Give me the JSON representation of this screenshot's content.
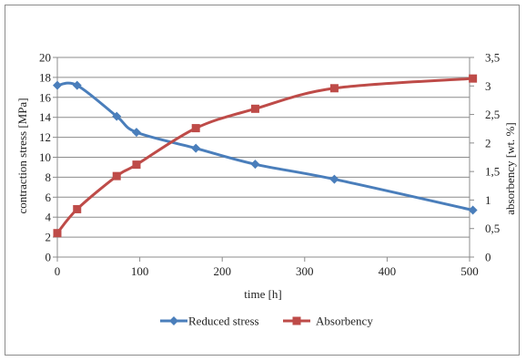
{
  "chart_data": {
    "type": "line",
    "title": "",
    "xlabel": "time  [h]",
    "ylabel_left": "contraction  stress  [MPa]",
    "ylabel_right": "absorbency  [wt. %]",
    "xlim": [
      0,
      500
    ],
    "ylim_left": [
      0,
      20
    ],
    "ylim_right": [
      0,
      3.5
    ],
    "x_ticks": [
      "0",
      "100",
      "200",
      "300",
      "400",
      "500"
    ],
    "y_left_ticks": [
      "0",
      "2",
      "4",
      "6",
      "8",
      "10",
      "12",
      "14",
      "16",
      "18",
      "20"
    ],
    "y_right_ticks": [
      "0",
      "0,5",
      "1",
      "1,5",
      "2",
      "2,5",
      "3",
      "3,5"
    ],
    "grid": true,
    "legend_position": "bottom",
    "series": [
      {
        "name": "Reduced stress",
        "axis": "left",
        "color": "#4a7ebb",
        "marker": "diamond",
        "x": [
          0,
          24,
          72,
          96,
          168,
          240,
          336,
          504
        ],
        "y": [
          17.2,
          17.2,
          14.1,
          12.5,
          10.9,
          9.3,
          7.8,
          4.7
        ]
      },
      {
        "name": "Absorbency",
        "axis": "right",
        "color": "#be4b48",
        "marker": "square",
        "x": [
          0,
          24,
          72,
          96,
          168,
          240,
          336,
          504
        ],
        "y": [
          0.42,
          0.84,
          1.42,
          1.62,
          2.26,
          2.6,
          2.96,
          3.13
        ]
      }
    ]
  }
}
